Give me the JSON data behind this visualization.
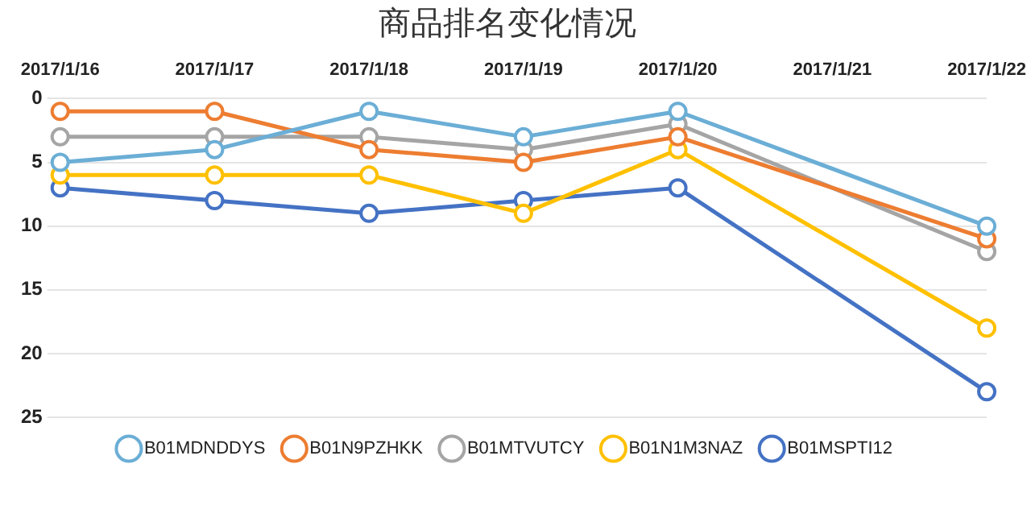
{
  "chart_data": {
    "type": "line",
    "title": "商品排名变化情况",
    "categories": [
      "2017/1/16",
      "2017/1/17",
      "2017/1/18",
      "2017/1/19",
      "2017/1/20",
      "2017/1/21",
      "2017/1/22"
    ],
    "series": [
      {
        "name": "B01MDNDDYS",
        "color": "#6baed6",
        "values": [
          5,
          4,
          1,
          3,
          1,
          null,
          10
        ]
      },
      {
        "name": "B01N9PZHKK",
        "color": "#ed7d31",
        "values": [
          1,
          1,
          4,
          5,
          3,
          null,
          11
        ]
      },
      {
        "name": "B01MTVUTCY",
        "color": "#a5a5a5",
        "values": [
          3,
          3,
          3,
          4,
          2,
          null,
          12
        ]
      },
      {
        "name": "B01N1M3NAZ",
        "color": "#ffc000",
        "values": [
          6,
          6,
          6,
          9,
          4,
          null,
          18
        ]
      },
      {
        "name": "B01MSPTI12",
        "color": "#4472c4",
        "values": [
          7,
          8,
          9,
          8,
          7,
          null,
          23
        ]
      }
    ],
    "ylim": [
      25,
      0
    ],
    "yticks": [
      0,
      5,
      10,
      15,
      20,
      25
    ],
    "grid": "y",
    "legend": "bottom",
    "marker": "circle",
    "line_style": "solid"
  }
}
